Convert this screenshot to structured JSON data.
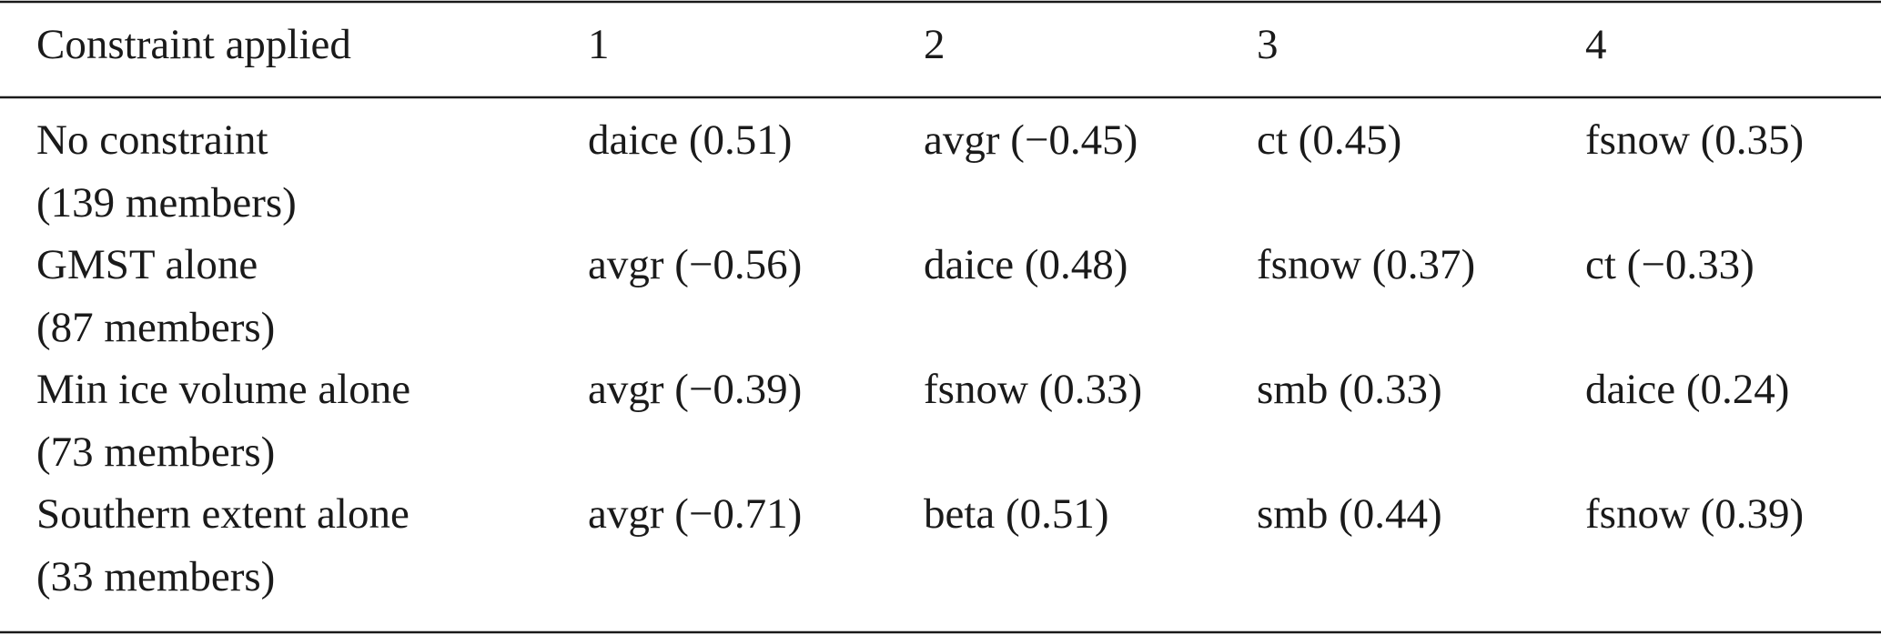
{
  "table": {
    "header": [
      "Constraint applied",
      "1",
      "2",
      "3",
      "4"
    ],
    "rows": [
      {
        "label": "No constraint",
        "sublabel": "(139 members)",
        "cells": [
          "daice (0.51)",
          "avgr (−0.45)",
          "ct (0.45)",
          "fsnow (0.35)"
        ]
      },
      {
        "label": "GMST alone",
        "sublabel": "(87 members)",
        "cells": [
          "avgr (−0.56)",
          "daice (0.48)",
          "fsnow (0.37)",
          "ct (−0.33)"
        ]
      },
      {
        "label": "Min ice volume alone",
        "sublabel": "(73 members)",
        "cells": [
          "avgr (−0.39)",
          "fsnow (0.33)",
          "smb (0.33)",
          "daice (0.24)"
        ]
      },
      {
        "label": "Southern extent alone",
        "sublabel": "(33 members)",
        "cells": [
          "avgr (−0.71)",
          "beta (0.51)",
          "smb (0.44)",
          "fsnow (0.39)"
        ]
      }
    ]
  }
}
